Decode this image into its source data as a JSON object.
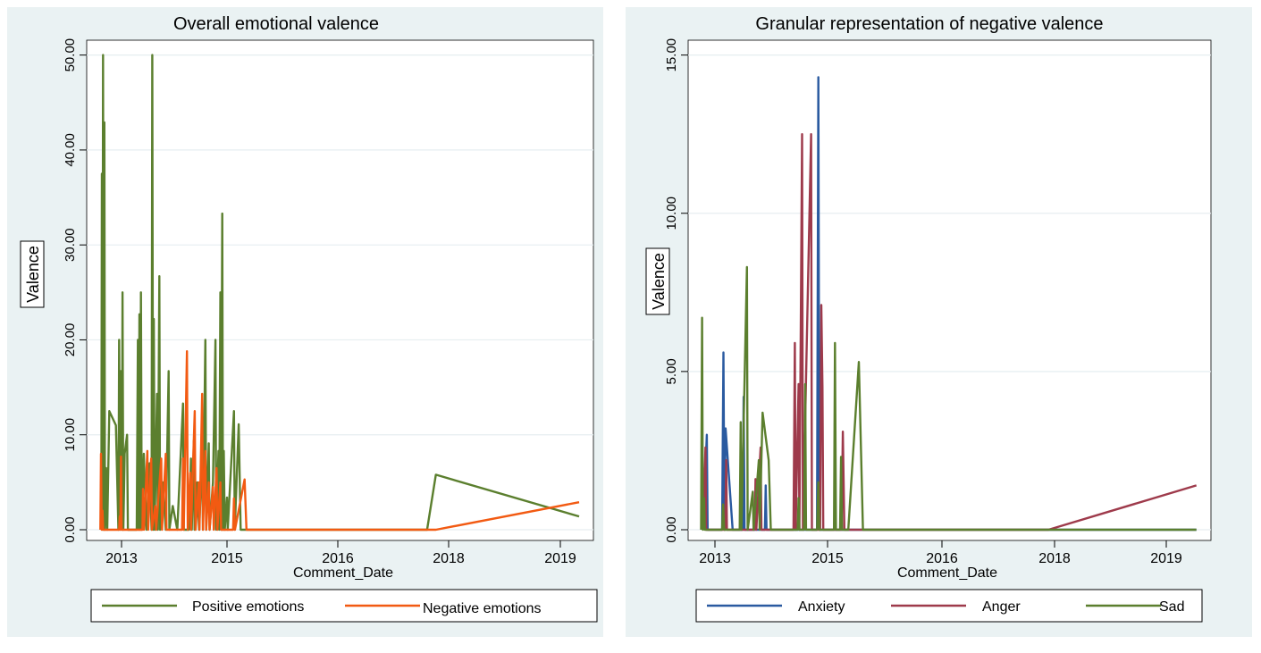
{
  "chart_data": [
    {
      "type": "line",
      "title": "Overall emotional valence",
      "xlabel": "Comment_Date",
      "ylabel": "Valence",
      "xticks": [
        "2013",
        "2015",
        "2016",
        "2018",
        "2019"
      ],
      "yticks": [
        "0.00",
        "10.00",
        "20.00",
        "30.00",
        "40.00",
        "50.00"
      ],
      "xlim": [
        "2012-09-01",
        "2019-11-01"
      ],
      "ylim": [
        0,
        51
      ],
      "grid": "horizontal",
      "legend": "bottom",
      "series": [
        {
          "name": "Positive emotions",
          "color": "#5b7f2e",
          "points": [
            [
              "2012-10-20",
              0
            ],
            [
              "2012-10-23",
              37.5
            ],
            [
              "2012-10-26",
              0
            ],
            [
              "2012-10-29",
              50
            ],
            [
              "2012-11-02",
              0
            ],
            [
              "2012-11-05",
              42.9
            ],
            [
              "2012-11-08",
              0
            ],
            [
              "2012-11-14",
              6.5
            ],
            [
              "2012-11-20",
              0
            ],
            [
              "2012-12-01",
              12.5
            ],
            [
              "2013-01-05",
              11
            ],
            [
              "2013-01-18",
              0
            ],
            [
              "2013-01-22",
              20
            ],
            [
              "2013-01-26",
              0
            ],
            [
              "2013-01-30",
              16.7
            ],
            [
              "2013-02-05",
              0
            ],
            [
              "2013-02-09",
              25
            ],
            [
              "2013-02-13",
              0
            ],
            [
              "2013-02-20",
              8
            ],
            [
              "2013-03-05",
              10
            ],
            [
              "2013-03-09",
              0
            ],
            [
              "2013-04-25",
              0
            ],
            [
              "2013-05-01",
              20
            ],
            [
              "2013-05-05",
              0
            ],
            [
              "2013-05-09",
              22.7
            ],
            [
              "2013-05-13",
              0
            ],
            [
              "2013-05-17",
              25
            ],
            [
              "2013-05-21",
              0
            ],
            [
              "2013-06-01",
              8
            ],
            [
              "2013-06-15",
              0
            ],
            [
              "2013-07-01",
              7
            ],
            [
              "2013-07-12",
              0
            ],
            [
              "2013-07-16",
              50
            ],
            [
              "2013-07-20",
              0
            ],
            [
              "2013-07-24",
              22.2
            ],
            [
              "2013-07-28",
              0
            ],
            [
              "2013-08-10",
              14.3
            ],
            [
              "2013-08-14",
              0
            ],
            [
              "2013-08-22",
              26.7
            ],
            [
              "2013-08-26",
              0
            ],
            [
              "2013-09-10",
              5
            ],
            [
              "2013-09-25",
              0
            ],
            [
              "2013-10-10",
              16.7
            ],
            [
              "2013-10-14",
              0
            ],
            [
              "2013-11-01",
              2.5
            ],
            [
              "2013-11-25",
              0
            ],
            [
              "2013-12-25",
              13.3
            ],
            [
              "2013-12-29",
              0
            ],
            [
              "2014-01-25",
              0
            ],
            [
              "2014-02-05",
              7.5
            ],
            [
              "2014-02-09",
              0
            ],
            [
              "2014-02-20",
              9.4
            ],
            [
              "2014-02-24",
              0
            ],
            [
              "2014-03-10",
              5
            ],
            [
              "2014-03-20",
              0
            ],
            [
              "2014-04-05",
              7.7
            ],
            [
              "2014-04-09",
              0
            ],
            [
              "2014-04-22",
              20
            ],
            [
              "2014-04-26",
              0
            ],
            [
              "2014-05-10",
              9.1
            ],
            [
              "2014-05-14",
              0
            ],
            [
              "2014-06-01",
              5
            ],
            [
              "2014-06-14",
              20
            ],
            [
              "2014-06-18",
              0
            ],
            [
              "2014-06-30",
              8.3
            ],
            [
              "2014-07-04",
              0
            ],
            [
              "2014-07-10",
              25
            ],
            [
              "2014-07-14",
              0
            ],
            [
              "2014-07-20",
              33.3
            ],
            [
              "2014-07-24",
              0
            ],
            [
              "2014-07-28",
              8.3
            ],
            [
              "2014-08-02",
              0
            ],
            [
              "2014-08-14",
              3.4
            ],
            [
              "2014-08-18",
              0
            ],
            [
              "2014-09-20",
              12.5
            ],
            [
              "2014-09-24",
              0
            ],
            [
              "2014-10-15",
              11.1
            ],
            [
              "2014-10-25",
              0
            ],
            [
              "2017-07-05",
              0
            ],
            [
              "2017-08-20",
              5.8
            ],
            [
              "2019-09-15",
              1.4
            ]
          ]
        },
        {
          "name": "Negative emotions",
          "color": "#f25a12",
          "points": [
            [
              "2012-10-15",
              0
            ],
            [
              "2012-10-18",
              8
            ],
            [
              "2012-10-22",
              0
            ],
            [
              "2012-10-26",
              2
            ],
            [
              "2012-10-30",
              0
            ],
            [
              "2013-01-22",
              0
            ],
            [
              "2013-01-25",
              1.4
            ],
            [
              "2013-01-28",
              0
            ],
            [
              "2013-02-01",
              7.7
            ],
            [
              "2013-02-04",
              0
            ],
            [
              "2013-05-25",
              0
            ],
            [
              "2013-05-28",
              4.3
            ],
            [
              "2013-06-02",
              0
            ],
            [
              "2013-06-20",
              8.3
            ],
            [
              "2013-06-24",
              0
            ],
            [
              "2013-07-10",
              7.5
            ],
            [
              "2013-07-14",
              0
            ],
            [
              "2013-08-01",
              2.5
            ],
            [
              "2013-08-05",
              0
            ],
            [
              "2013-09-01",
              7.5
            ],
            [
              "2013-09-05",
              0
            ],
            [
              "2013-09-25",
              8
            ],
            [
              "2013-09-29",
              0
            ],
            [
              "2013-12-20",
              0
            ],
            [
              "2013-12-25",
              7.5
            ],
            [
              "2013-12-29",
              0
            ],
            [
              "2014-01-15",
              18.8
            ],
            [
              "2014-01-19",
              0
            ],
            [
              "2014-02-01",
              6
            ],
            [
              "2014-02-05",
              0
            ],
            [
              "2014-02-25",
              12.5
            ],
            [
              "2014-03-01",
              0
            ],
            [
              "2014-03-18",
              5
            ],
            [
              "2014-03-22",
              0
            ],
            [
              "2014-04-05",
              14.3
            ],
            [
              "2014-04-09",
              0
            ],
            [
              "2014-04-22",
              8.3
            ],
            [
              "2014-04-26",
              0
            ],
            [
              "2014-05-10",
              5
            ],
            [
              "2014-05-14",
              0
            ],
            [
              "2014-06-01",
              4.5
            ],
            [
              "2014-06-05",
              0
            ],
            [
              "2014-06-20",
              6.5
            ],
            [
              "2014-06-24",
              0
            ],
            [
              "2014-07-10",
              5
            ],
            [
              "2014-07-14",
              0
            ],
            [
              "2014-09-15",
              0
            ],
            [
              "2014-09-20",
              3.3
            ],
            [
              "2014-09-25",
              0
            ],
            [
              "2014-11-15",
              5.3
            ],
            [
              "2014-11-25",
              0
            ],
            [
              "2017-08-20",
              0
            ],
            [
              "2019-09-15",
              2.9
            ]
          ]
        }
      ]
    },
    {
      "type": "line",
      "title": "Granular representation of negative valence",
      "xlabel": "Comment_Date",
      "ylabel": "Valence",
      "xticks": [
        "2013",
        "2015",
        "2016",
        "2018",
        "2019"
      ],
      "yticks": [
        "0.00",
        "5.00",
        "10.00",
        "15.00"
      ],
      "xlim": [
        "2012-09-01",
        "2019-11-01"
      ],
      "ylim": [
        0,
        15.3
      ],
      "grid": "horizontal",
      "legend": "bottom",
      "series": [
        {
          "name": "Anxiety",
          "color": "#2a5aa0",
          "points": [
            [
              "2012-10-20",
              0
            ],
            [
              "2012-11-08",
              3
            ],
            [
              "2012-11-12",
              0
            ],
            [
              "2013-01-25",
              0
            ],
            [
              "2013-02-01",
              5.6
            ],
            [
              "2013-02-06",
              0
            ],
            [
              "2013-02-12",
              3.2
            ],
            [
              "2013-03-20",
              0
            ],
            [
              "2013-05-10",
              0
            ],
            [
              "2013-05-15",
              4.2
            ],
            [
              "2013-05-20",
              0
            ],
            [
              "2013-09-01",
              0
            ],
            [
              "2013-09-05",
              1.4
            ],
            [
              "2013-09-09",
              0
            ],
            [
              "2014-05-25",
              0
            ],
            [
              "2014-06-01",
              14.3
            ],
            [
              "2014-06-06",
              0
            ],
            [
              "2019-09-15",
              0
            ]
          ]
        },
        {
          "name": "Anger",
          "color": "#9e3a4b",
          "points": [
            [
              "2012-10-20",
              0
            ],
            [
              "2012-11-01",
              2.6
            ],
            [
              "2012-11-05",
              0
            ],
            [
              "2013-02-10",
              0
            ],
            [
              "2013-02-15",
              2.2
            ],
            [
              "2013-02-19",
              0
            ],
            [
              "2013-07-10",
              0
            ],
            [
              "2013-07-15",
              1.6
            ],
            [
              "2013-07-19",
              0
            ],
            [
              "2013-08-10",
              2.6
            ],
            [
              "2013-08-14",
              0
            ],
            [
              "2014-01-25",
              0
            ],
            [
              "2014-02-01",
              5.9
            ],
            [
              "2014-02-05",
              0
            ],
            [
              "2014-02-20",
              4.6
            ],
            [
              "2014-02-24",
              0
            ],
            [
              "2014-03-10",
              12.5
            ],
            [
              "2014-03-14",
              0
            ],
            [
              "2014-04-25",
              12.5
            ],
            [
              "2014-04-29",
              0
            ],
            [
              "2014-06-10",
              0
            ],
            [
              "2014-06-16",
              7.1
            ],
            [
              "2014-06-22",
              4.5
            ],
            [
              "2014-06-26",
              0
            ],
            [
              "2014-09-28",
              0
            ],
            [
              "2014-10-04",
              3.1
            ],
            [
              "2014-10-12",
              0
            ],
            [
              "2017-08-20",
              0
            ],
            [
              "2019-09-15",
              1.4
            ]
          ]
        },
        {
          "name": "Sad",
          "color": "#5b7f2e",
          "points": [
            [
              "2012-10-10",
              0
            ],
            [
              "2012-10-15",
              6.7
            ],
            [
              "2012-10-19",
              0
            ],
            [
              "2012-10-25",
              1
            ],
            [
              "2012-10-29",
              0
            ],
            [
              "2013-01-25",
              0
            ],
            [
              "2013-01-30",
              0.8
            ],
            [
              "2013-02-05",
              0
            ],
            [
              "2013-04-25",
              0
            ],
            [
              "2013-04-30",
              3.4
            ],
            [
              "2013-05-04",
              0
            ],
            [
              "2013-06-01",
              8.3
            ],
            [
              "2013-06-05",
              0
            ],
            [
              "2013-07-01",
              1.2
            ],
            [
              "2013-07-05",
              0
            ],
            [
              "2013-08-01",
              2.2
            ],
            [
              "2013-08-05",
              0
            ],
            [
              "2013-08-20",
              3.7
            ],
            [
              "2013-09-20",
              2.2
            ],
            [
              "2013-10-01",
              0
            ],
            [
              "2014-02-15",
              0
            ],
            [
              "2014-02-20",
              1
            ],
            [
              "2014-02-24",
              0
            ],
            [
              "2014-03-20",
              0
            ],
            [
              "2014-03-26",
              4.6
            ],
            [
              "2014-03-30",
              0
            ],
            [
              "2014-05-25",
              0
            ],
            [
              "2014-06-01",
              1.5
            ],
            [
              "2014-06-06",
              0
            ],
            [
              "2014-08-20",
              0
            ],
            [
              "2014-08-25",
              5.9
            ],
            [
              "2014-08-30",
              0
            ],
            [
              "2014-09-20",
              0
            ],
            [
              "2014-09-25",
              2.3
            ],
            [
              "2014-09-30",
              0
            ],
            [
              "2014-11-01",
              0
            ],
            [
              "2014-12-25",
              5.3
            ],
            [
              "2015-01-15",
              0
            ],
            [
              "2019-09-15",
              0
            ]
          ]
        }
      ]
    }
  ]
}
